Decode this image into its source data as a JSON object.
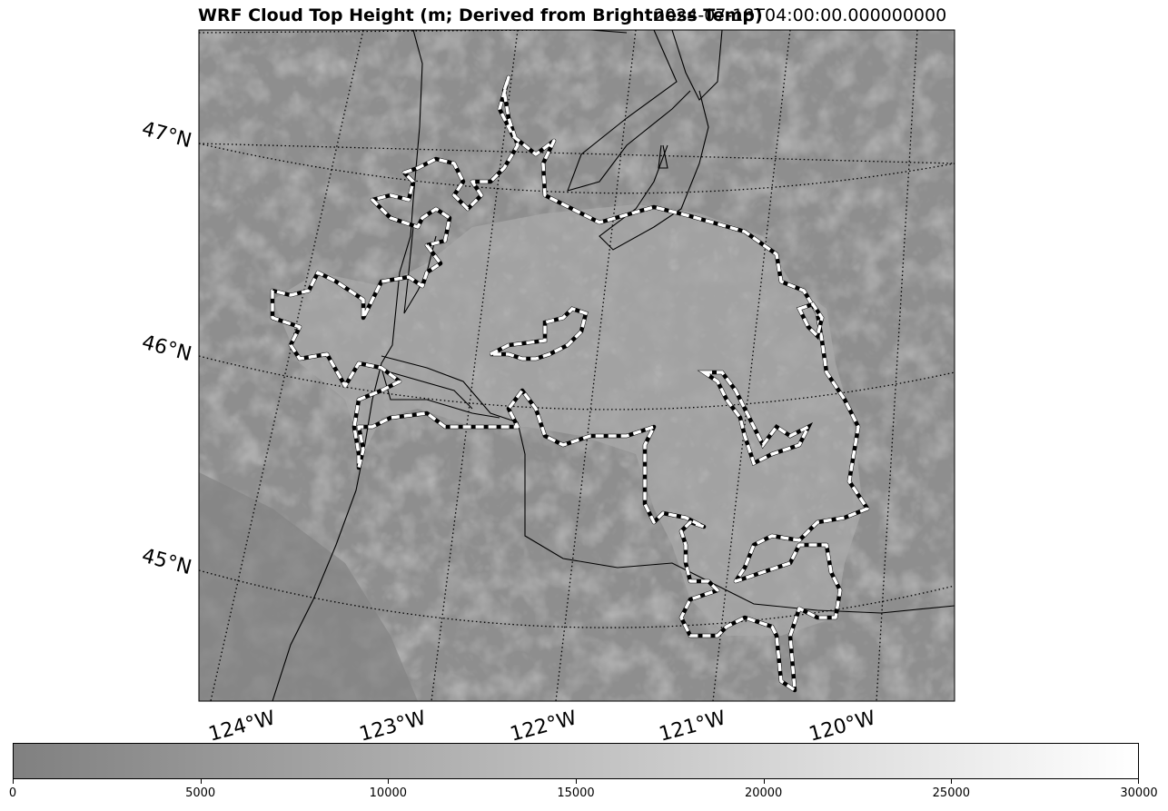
{
  "title": {
    "main": "WRF Cloud Top Height (m; Derived from Brightness Temp)",
    "time": "2024-07-18T04:00:00.000000000"
  },
  "map": {
    "field": "cloud top height",
    "colormap": "gray",
    "gridlines": true,
    "lat_labels": [
      "47°N",
      "46°N",
      "45°N"
    ],
    "lon_labels": [
      "124°W",
      "123°W",
      "122°W",
      "121°W",
      "120°W"
    ],
    "contour_style": "white/black dashed",
    "features": [
      "coastline",
      "state borders",
      "rivers"
    ]
  },
  "colorbar": {
    "vmin": 0,
    "vmax": 30000,
    "ticks": [
      "0",
      "5000",
      "10000",
      "15000",
      "20000",
      "25000",
      "30000"
    ],
    "colors": {
      "low": "#808080",
      "high": "#ffffff"
    }
  }
}
